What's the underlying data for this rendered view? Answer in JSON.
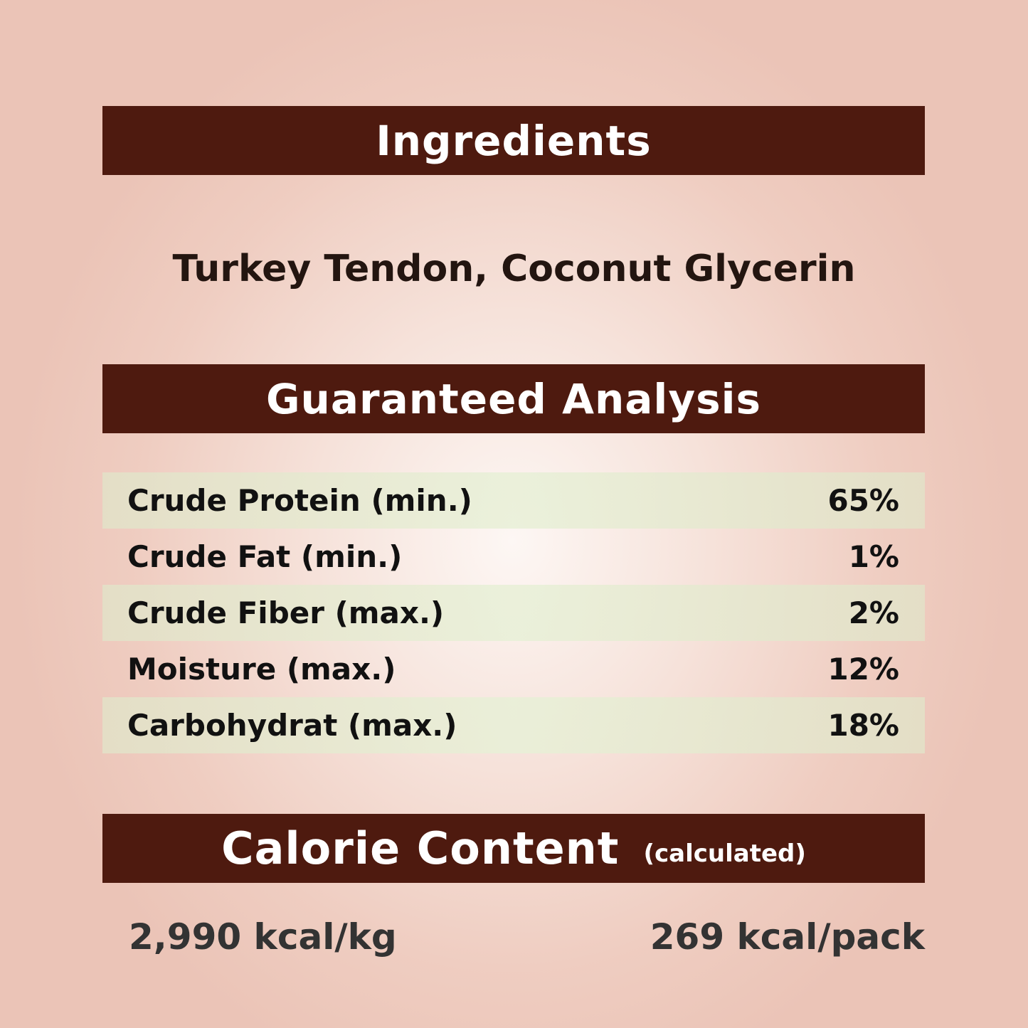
{
  "ingredients": {
    "heading": "Ingredients",
    "text": "Turkey Tendon, Coconut Glycerin"
  },
  "analysis": {
    "heading": "Guaranteed Analysis",
    "rows": [
      {
        "label": "Crude Protein (min.)",
        "value": "65%"
      },
      {
        "label": "Crude Fat (min.)",
        "value": "1%"
      },
      {
        "label": "Crude Fiber (max.)",
        "value": "2%"
      },
      {
        "label": "Moisture (max.)",
        "value": "12%"
      },
      {
        "label": "Carbohydrat (max.)",
        "value": "18%"
      }
    ]
  },
  "calories": {
    "heading": "Calorie Content",
    "subheading": "(calculated)",
    "per_kg": "2,990 kcal/kg",
    "per_pack": "269 kcal/pack"
  },
  "colors": {
    "banner": "#4e1a0f",
    "background": "#efcdc1",
    "row_shade": "#e4e6cc"
  }
}
